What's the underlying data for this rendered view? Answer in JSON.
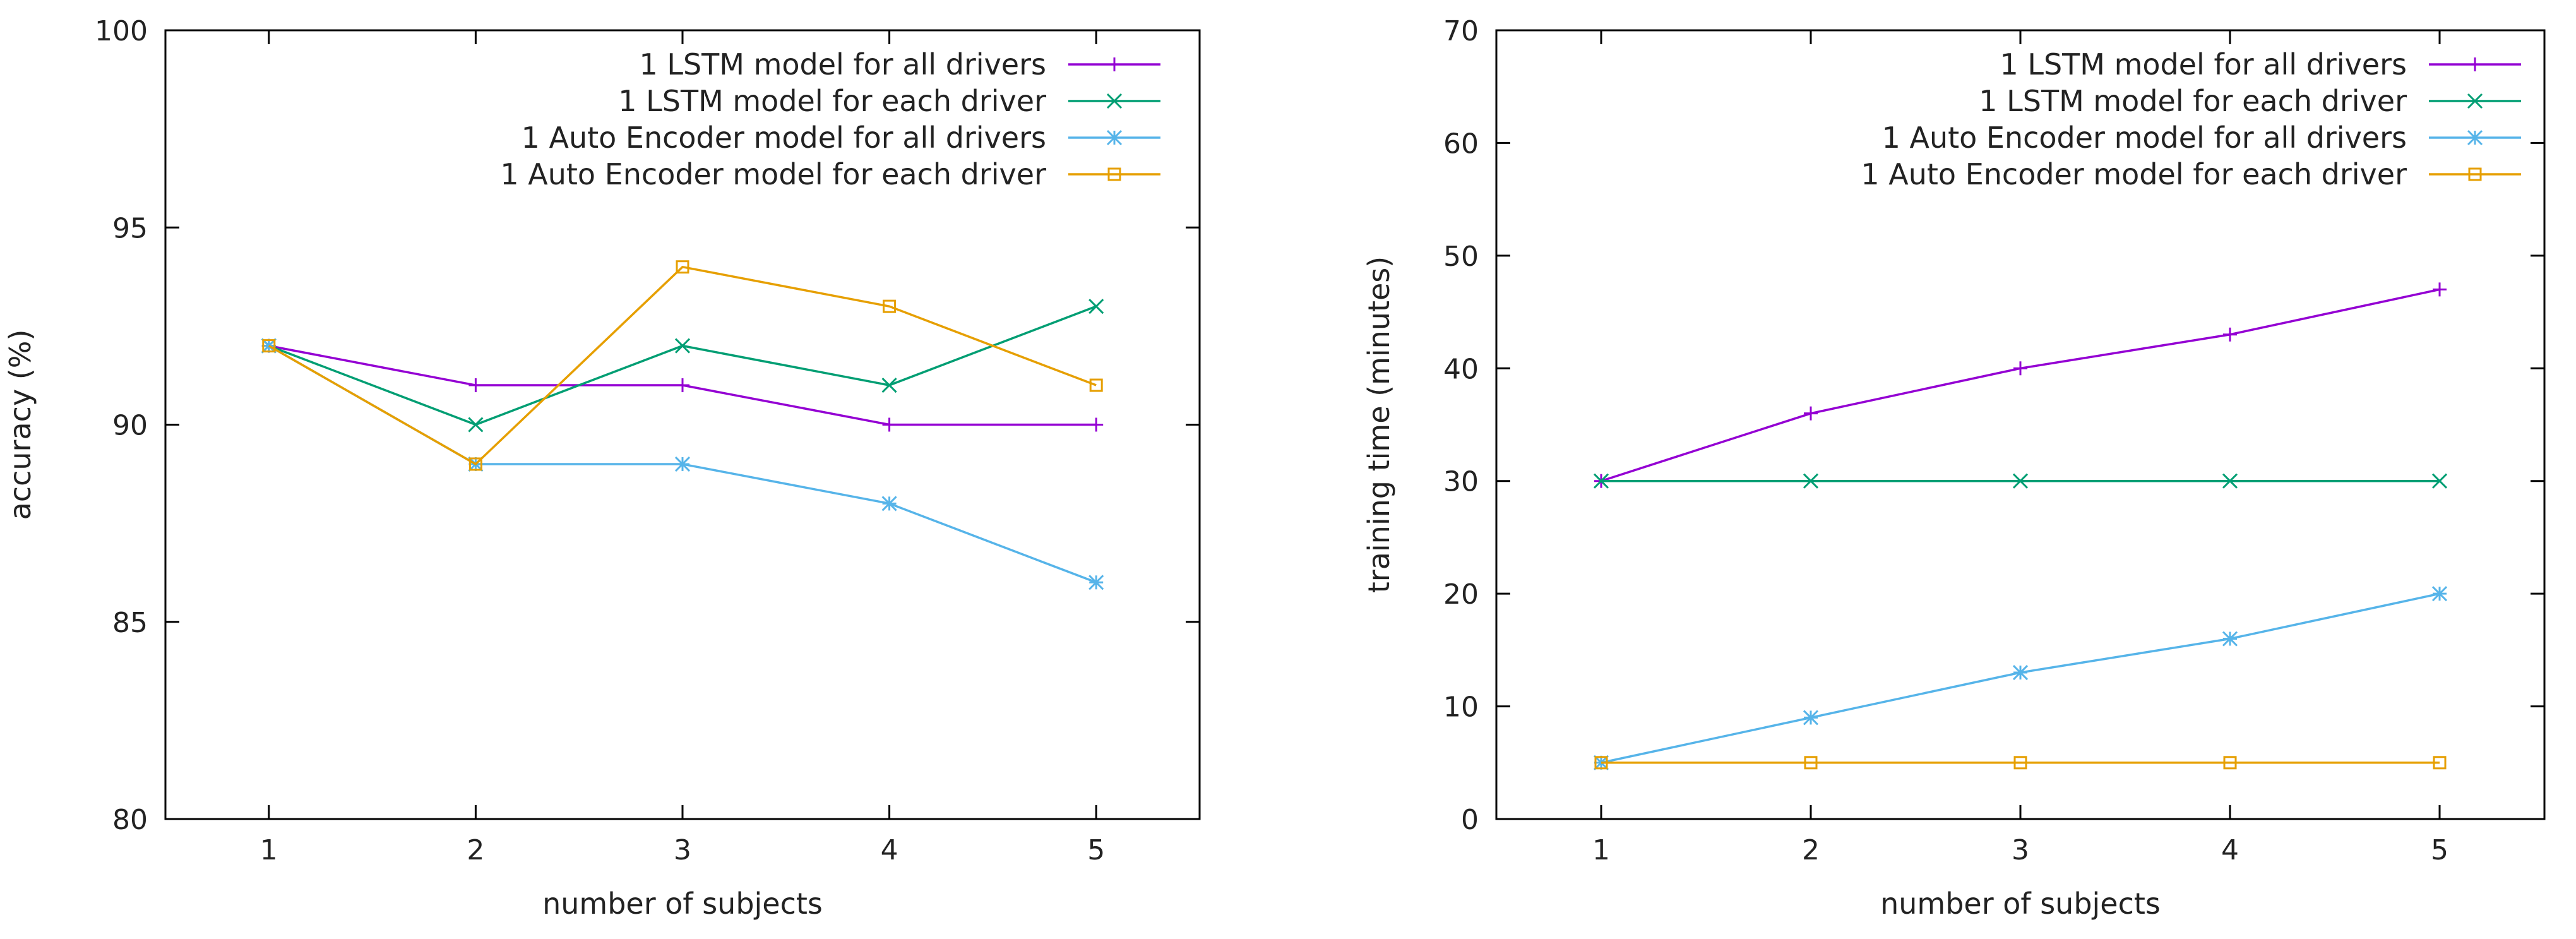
{
  "chart_data": [
    {
      "type": "line",
      "title": "",
      "xlabel": "number of subjects",
      "ylabel": "accuracy (%)",
      "x": [
        1,
        2,
        3,
        4,
        5
      ],
      "xlim": [
        0.5,
        5.5
      ],
      "ylim": [
        80,
        100
      ],
      "xticks": [
        "1",
        "2",
        "3",
        "4",
        "5"
      ],
      "yticks": [
        "80",
        "85",
        "90",
        "95",
        "100"
      ],
      "grid": false,
      "legend_position": "top-right",
      "series": [
        {
          "name": "1 LSTM model for all drivers",
          "color": "#9400d3",
          "marker": "plus",
          "values": [
            92,
            91,
            91,
            90,
            90
          ]
        },
        {
          "name": "1 LSTM model for each driver",
          "color": "#009e73",
          "marker": "cross",
          "values": [
            92,
            90,
            92,
            91,
            93
          ]
        },
        {
          "name": "1 Auto Encoder model for all drivers",
          "color": "#56b4e9",
          "marker": "star",
          "values": [
            92,
            89,
            89,
            88,
            86
          ]
        },
        {
          "name": "1 Auto Encoder model for each driver",
          "color": "#e69f00",
          "marker": "square",
          "values": [
            92,
            89,
            94,
            93,
            91
          ]
        }
      ]
    },
    {
      "type": "line",
      "title": "",
      "xlabel": "number of subjects",
      "ylabel": "training time (minutes)",
      "x": [
        1,
        2,
        3,
        4,
        5
      ],
      "xlim": [
        0.5,
        5.5
      ],
      "ylim": [
        0,
        70
      ],
      "xticks": [
        "1",
        "2",
        "3",
        "4",
        "5"
      ],
      "yticks": [
        "0",
        "10",
        "20",
        "30",
        "40",
        "50",
        "60",
        "70"
      ],
      "grid": false,
      "legend_position": "top-right",
      "series": [
        {
          "name": "1 LSTM model for all drivers",
          "color": "#9400d3",
          "marker": "plus",
          "values": [
            30,
            36,
            40,
            43,
            47
          ]
        },
        {
          "name": "1 LSTM model for each driver",
          "color": "#009e73",
          "marker": "cross",
          "values": [
            30,
            30,
            30,
            30,
            30
          ]
        },
        {
          "name": "1 Auto Encoder model for all drivers",
          "color": "#56b4e9",
          "marker": "star",
          "values": [
            5,
            9,
            13,
            16,
            20
          ]
        },
        {
          "name": "1 Auto Encoder model for each driver",
          "color": "#e69f00",
          "marker": "square",
          "values": [
            5,
            5,
            5,
            5,
            5
          ]
        }
      ]
    }
  ]
}
